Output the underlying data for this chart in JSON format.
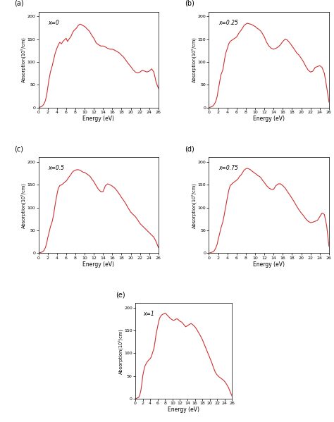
{
  "line_color": "#cc3333",
  "line_width": 0.8,
  "xlabel": "Energy (eV)",
  "ylabel": "Absorption(10⁵/cm)",
  "xlim": [
    0,
    26
  ],
  "ylim": [
    0,
    210
  ],
  "xticks": [
    0,
    2,
    4,
    6,
    8,
    10,
    12,
    14,
    16,
    18,
    20,
    22,
    24,
    26
  ],
  "yticks": [
    0,
    50,
    100,
    150,
    200
  ],
  "panel_labels": [
    "(a)",
    "(b)",
    "(c)",
    "(d)",
    "(e)"
  ],
  "x_labels": [
    "x=0",
    "x=0.25",
    "x=0.5",
    "x=0.75",
    "x=1"
  ],
  "curves": {
    "x0": {
      "energy": [
        0,
        0.3,
        0.6,
        0.9,
        1.2,
        1.5,
        1.8,
        2.0,
        2.3,
        2.6,
        3.0,
        3.3,
        3.6,
        4.0,
        4.3,
        4.6,
        5.0,
        5.3,
        5.6,
        6.0,
        6.3,
        6.6,
        7.0,
        7.3,
        7.6,
        8.0,
        8.3,
        8.6,
        9.0,
        9.3,
        9.6,
        10.0,
        10.3,
        10.6,
        11.0,
        11.3,
        11.6,
        12.0,
        12.5,
        13.0,
        13.5,
        14.0,
        14.5,
        15.0,
        15.5,
        16.0,
        16.5,
        17.0,
        17.5,
        18.0,
        18.5,
        19.0,
        19.5,
        20.0,
        20.5,
        21.0,
        21.5,
        22.0,
        22.5,
        23.0,
        23.5,
        24.0,
        24.5,
        25.0,
        25.5,
        26.0
      ],
      "absorption": [
        0,
        1,
        2,
        4,
        8,
        15,
        28,
        42,
        62,
        78,
        92,
        105,
        118,
        130,
        137,
        143,
        140,
        145,
        148,
        152,
        145,
        150,
        155,
        162,
        168,
        172,
        175,
        180,
        183,
        182,
        180,
        178,
        175,
        172,
        168,
        163,
        158,
        152,
        142,
        138,
        135,
        135,
        133,
        130,
        128,
        128,
        126,
        123,
        120,
        115,
        110,
        103,
        96,
        90,
        83,
        78,
        76,
        78,
        82,
        80,
        78,
        80,
        85,
        78,
        55,
        42
      ]
    },
    "x025": {
      "energy": [
        0,
        0.3,
        0.6,
        0.9,
        1.2,
        1.5,
        1.8,
        2.0,
        2.3,
        2.6,
        3.0,
        3.3,
        3.6,
        4.0,
        4.3,
        4.6,
        5.0,
        5.3,
        5.6,
        6.0,
        6.3,
        6.6,
        7.0,
        7.3,
        7.6,
        8.0,
        8.3,
        8.6,
        9.0,
        9.3,
        9.6,
        10.0,
        10.3,
        10.6,
        11.0,
        11.3,
        11.6,
        12.0,
        12.5,
        13.0,
        13.5,
        14.0,
        14.5,
        15.0,
        15.5,
        16.0,
        16.5,
        17.0,
        17.5,
        18.0,
        18.5,
        19.0,
        19.5,
        20.0,
        20.5,
        21.0,
        21.5,
        22.0,
        22.5,
        23.0,
        23.5,
        24.0,
        24.5,
        25.0,
        25.5,
        26.0
      ],
      "absorption": [
        0,
        1,
        2,
        4,
        8,
        14,
        25,
        38,
        55,
        72,
        82,
        100,
        118,
        130,
        140,
        145,
        148,
        150,
        152,
        155,
        160,
        165,
        170,
        175,
        180,
        183,
        185,
        184,
        183,
        182,
        180,
        178,
        175,
        173,
        170,
        167,
        162,
        155,
        143,
        135,
        130,
        128,
        130,
        133,
        138,
        145,
        150,
        148,
        142,
        135,
        128,
        120,
        115,
        108,
        100,
        90,
        82,
        78,
        80,
        88,
        90,
        92,
        88,
        75,
        45,
        12
      ]
    },
    "x05": {
      "energy": [
        0,
        0.3,
        0.6,
        0.9,
        1.2,
        1.5,
        1.8,
        2.0,
        2.3,
        2.6,
        3.0,
        3.3,
        3.6,
        4.0,
        4.3,
        4.6,
        5.0,
        5.3,
        5.6,
        6.0,
        6.3,
        6.6,
        7.0,
        7.3,
        7.6,
        8.0,
        8.3,
        8.6,
        9.0,
        9.3,
        9.6,
        10.0,
        10.3,
        10.6,
        11.0,
        11.3,
        11.6,
        12.0,
        12.5,
        13.0,
        13.5,
        14.0,
        14.5,
        15.0,
        15.5,
        16.0,
        16.5,
        17.0,
        17.5,
        18.0,
        18.5,
        19.0,
        19.5,
        20.0,
        20.5,
        21.0,
        21.5,
        22.0,
        22.5,
        23.0,
        23.5,
        24.0,
        24.5,
        25.0,
        25.5,
        26.0
      ],
      "absorption": [
        0,
        1,
        2,
        3,
        6,
        12,
        22,
        33,
        45,
        58,
        70,
        85,
        105,
        128,
        142,
        148,
        150,
        152,
        155,
        158,
        162,
        167,
        172,
        177,
        180,
        182,
        183,
        183,
        182,
        180,
        178,
        177,
        175,
        173,
        170,
        167,
        162,
        157,
        148,
        140,
        135,
        135,
        148,
        152,
        150,
        147,
        143,
        137,
        130,
        122,
        115,
        107,
        98,
        90,
        85,
        80,
        73,
        65,
        60,
        55,
        50,
        45,
        40,
        35,
        25,
        12
      ]
    },
    "x075": {
      "energy": [
        0,
        0.3,
        0.6,
        0.9,
        1.2,
        1.5,
        1.8,
        2.0,
        2.3,
        2.6,
        3.0,
        3.3,
        3.6,
        4.0,
        4.3,
        4.6,
        5.0,
        5.3,
        5.6,
        6.0,
        6.3,
        6.6,
        7.0,
        7.3,
        7.6,
        8.0,
        8.3,
        8.6,
        9.0,
        9.3,
        9.6,
        10.0,
        10.3,
        10.6,
        11.0,
        11.3,
        11.6,
        12.0,
        12.5,
        13.0,
        13.5,
        14.0,
        14.5,
        15.0,
        15.5,
        16.0,
        16.5,
        17.0,
        17.5,
        18.0,
        18.5,
        19.0,
        19.5,
        20.0,
        20.5,
        21.0,
        21.5,
        22.0,
        22.5,
        23.0,
        23.5,
        24.0,
        24.5,
        25.0,
        25.5,
        26.0
      ],
      "absorption": [
        0,
        1,
        2,
        3,
        6,
        12,
        20,
        30,
        42,
        55,
        68,
        83,
        100,
        122,
        138,
        148,
        152,
        155,
        157,
        160,
        163,
        168,
        172,
        177,
        182,
        185,
        186,
        185,
        183,
        180,
        178,
        175,
        173,
        170,
        168,
        165,
        160,
        155,
        148,
        143,
        140,
        140,
        148,
        152,
        152,
        148,
        143,
        135,
        128,
        120,
        112,
        103,
        95,
        88,
        82,
        75,
        70,
        67,
        68,
        70,
        72,
        80,
        88,
        85,
        60,
        15
      ]
    },
    "x1": {
      "energy": [
        0,
        0.3,
        0.6,
        0.9,
        1.2,
        1.5,
        1.8,
        2.0,
        2.3,
        2.6,
        3.0,
        3.3,
        3.6,
        4.0,
        4.3,
        4.6,
        5.0,
        5.3,
        5.6,
        6.0,
        6.3,
        6.6,
        7.0,
        7.3,
        7.6,
        8.0,
        8.3,
        8.6,
        9.0,
        9.3,
        9.6,
        10.0,
        10.3,
        10.6,
        11.0,
        11.3,
        11.6,
        12.0,
        12.5,
        13.0,
        13.5,
        14.0,
        14.5,
        15.0,
        15.5,
        16.0,
        16.5,
        17.0,
        17.5,
        18.0,
        18.5,
        19.0,
        19.5,
        20.0,
        20.5,
        21.0,
        21.5,
        22.0,
        22.5,
        23.0,
        23.5,
        24.0,
        24.5,
        25.0,
        25.5,
        26.0
      ],
      "absorption": [
        0,
        1,
        2,
        3,
        8,
        18,
        35,
        50,
        62,
        72,
        78,
        82,
        85,
        88,
        92,
        100,
        110,
        125,
        142,
        158,
        170,
        178,
        183,
        185,
        186,
        188,
        186,
        183,
        180,
        177,
        175,
        173,
        172,
        173,
        175,
        175,
        173,
        170,
        168,
        163,
        158,
        160,
        163,
        165,
        162,
        158,
        152,
        145,
        138,
        130,
        120,
        110,
        100,
        90,
        80,
        68,
        58,
        52,
        48,
        45,
        42,
        38,
        32,
        25,
        15,
        5
      ]
    }
  }
}
